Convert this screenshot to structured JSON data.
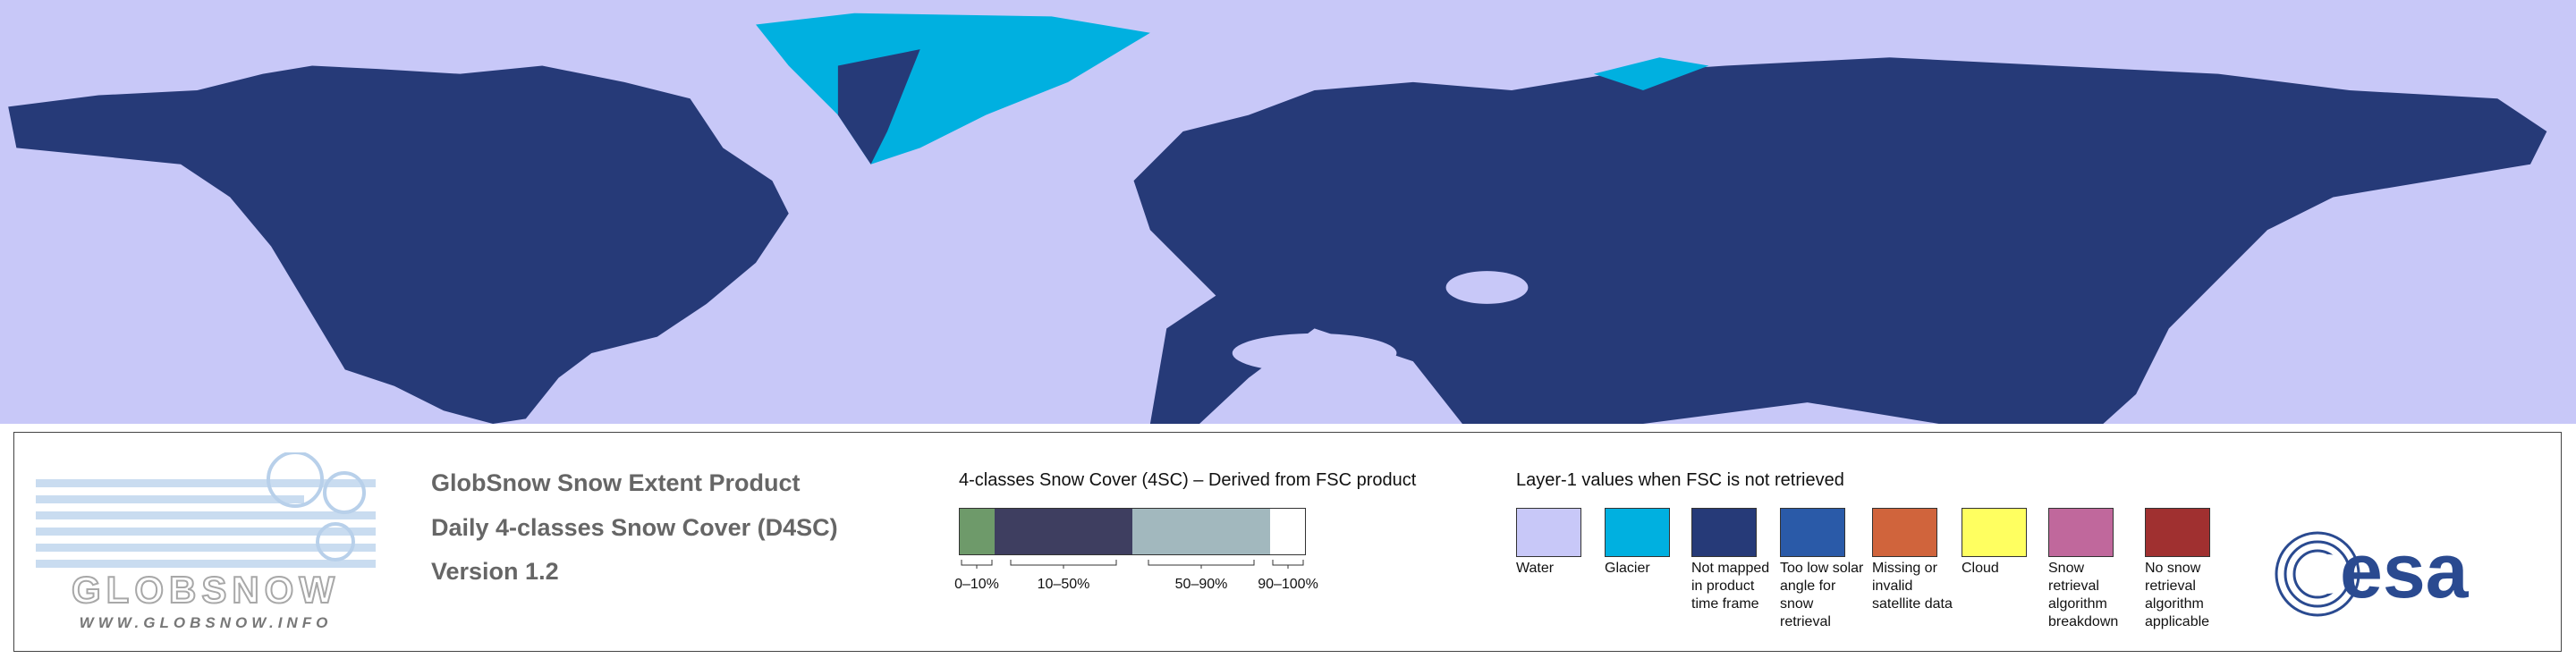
{
  "logo": {
    "name": "GLOBSNOW",
    "url": "WWW.GLOBSNOW.INFO"
  },
  "product": {
    "title": "GlobSnow Snow Extent Product",
    "subtitle": "Daily 4-classes Snow Cover (D4SC)",
    "version": "Version 1.2"
  },
  "snow_cover_legend": {
    "title": "4-classes Snow Cover (4SC) – Derived from FSC product",
    "classes": [
      {
        "label": "0–10%",
        "color": "#6e9a6a"
      },
      {
        "label": "10–50%",
        "color": "#3e3e60"
      },
      {
        "label": "50–90%",
        "color": "#a2b8be"
      },
      {
        "label": "90–100%",
        "color": "#ffffff"
      }
    ]
  },
  "layer1_legend": {
    "title": "Layer-1 values when FSC is not retrieved",
    "items": [
      {
        "label": "Water",
        "color": "#c8c8f8"
      },
      {
        "label": "Glacier",
        "color": "#00b0e0"
      },
      {
        "label": "Not mapped in product time frame",
        "color": "#263a78"
      },
      {
        "label": "Too low solar angle for snow retrieval",
        "color": "#2a5aa8"
      },
      {
        "label": "Missing or invalid satellite data",
        "color": "#d0643c"
      },
      {
        "label": "Cloud",
        "color": "#ffff60"
      },
      {
        "label": "Snow retrieval algorithm breakdown",
        "color": "#c0689c"
      },
      {
        "label": "No snow retrieval algorithm applicable",
        "color": "#a03030"
      }
    ]
  },
  "agency": "esa"
}
